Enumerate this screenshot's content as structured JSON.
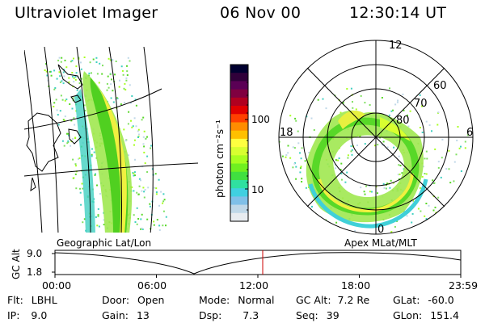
{
  "header": {
    "title": "Ultraviolet Imager",
    "date": "06 Nov 00",
    "time": "12:30:14 UT"
  },
  "geo_panel": {
    "caption": "Geographic Lat/Lon"
  },
  "polar_panel": {
    "caption": "Apex MLat/MLT",
    "mlt_labels": {
      "top": "12",
      "left": "18",
      "right": "6",
      "bottom": "0"
    },
    "lat_labels": [
      "60",
      "70",
      "80"
    ]
  },
  "colorbar": {
    "unit_label": "photon cm⁻²s⁻¹",
    "tick_labels": [
      "100",
      "10"
    ],
    "colors": [
      "#000030",
      "#30003a",
      "#5a0055",
      "#800040",
      "#b00020",
      "#e00000",
      "#ff4000",
      "#ff8c00",
      "#ffc000",
      "#ffff40",
      "#d8ff30",
      "#a8ff20",
      "#70f020",
      "#40e040",
      "#30e0a0",
      "#40d0e0",
      "#80c0e8",
      "#c0d8e8",
      "#e8ecf0"
    ]
  },
  "alt_plot": {
    "axis_label": "GC Alt",
    "y_ticks": [
      "9.0",
      "1.8"
    ],
    "x_ticks": [
      "00:00",
      "06:00",
      "12:00",
      "18:00",
      "23:59"
    ],
    "current_time_marker": "12:30"
  },
  "info": {
    "flt_label": "Flt:",
    "flt_value": "LBHL",
    "ip_label": "IP:",
    "ip_value": "9.0",
    "door_label": "Door:",
    "door_value": "Open",
    "gain_label": "Gain:",
    "gain_value": "13",
    "mode_label": "Mode:",
    "mode_value": "Normal",
    "dsp_label": "Dsp:",
    "dsp_value": "7.3",
    "gcalt_label": "GC Alt:",
    "gcalt_value": "7.2 Re",
    "seq_label": "Seq:",
    "seq_value": "39",
    "glat_label": "GLat:",
    "glat_value": "-60.0",
    "glon_label": "GLon:",
    "glon_value": "151.4"
  }
}
